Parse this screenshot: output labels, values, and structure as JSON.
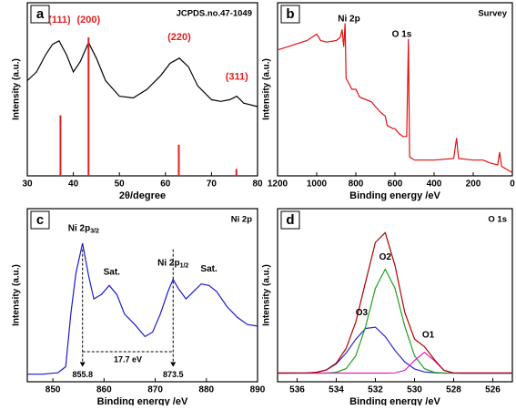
{
  "chart_data": [
    {
      "type": "line",
      "panel": "a",
      "title": "JCPDS.no.47-1049",
      "xlabel": "2θ/degree",
      "ylabel": "Intensity (a.u.)",
      "xlim": [
        30,
        80
      ],
      "xticks": [
        30,
        40,
        50,
        60,
        70,
        80
      ],
      "ylim": [
        0,
        1
      ],
      "series": [
        {
          "type": "line",
          "color": "#000000",
          "x": [
            30,
            32,
            34,
            35.5,
            36.9,
            38.5,
            40,
            41.5,
            43.3,
            45,
            47,
            50,
            53,
            56,
            59,
            61,
            63,
            65,
            67,
            70,
            72,
            74,
            75.5,
            77,
            80
          ],
          "values": [
            0.55,
            0.6,
            0.7,
            0.76,
            0.78,
            0.7,
            0.6,
            0.66,
            0.77,
            0.68,
            0.55,
            0.46,
            0.45,
            0.5,
            0.58,
            0.65,
            0.68,
            0.63,
            0.52,
            0.44,
            0.43,
            0.44,
            0.46,
            0.42,
            0.4
          ]
        },
        {
          "type": "bar",
          "color": "#e02020",
          "x": [
            37.2,
            43.3,
            62.9,
            75.4
          ],
          "values": [
            0.35,
            0.8,
            0.18,
            0.04
          ]
        }
      ],
      "annotations": [
        {
          "text": "(111)",
          "x": 37,
          "y": 0.9,
          "color": "#e02020"
        },
        {
          "text": "(200)",
          "x": 43.3,
          "y": 0.9,
          "color": "#e02020"
        },
        {
          "text": "(220)",
          "x": 63,
          "y": 0.8,
          "color": "#e02020"
        },
        {
          "text": "(311)",
          "x": 75.5,
          "y": 0.57,
          "color": "#e02020"
        }
      ]
    },
    {
      "type": "line",
      "panel": "b",
      "title": "Survey",
      "xlabel": "Binding energy /eV",
      "ylabel": "Intensity (a.u.)",
      "xlim": [
        1200,
        0
      ],
      "xticks": [
        1200,
        1000,
        800,
        600,
        400,
        200,
        0
      ],
      "ylim": [
        0,
        1.1
      ],
      "series": [
        {
          "type": "line",
          "color": "#e01010",
          "x": [
            1200,
            1150,
            1100,
            1050,
            1000,
            980,
            950,
            900,
            880,
            870,
            862,
            855,
            850,
            820,
            800,
            780,
            720,
            700,
            670,
            650,
            640,
            610,
            600,
            580,
            560,
            540,
            531,
            525,
            500,
            400,
            300,
            285,
            275,
            200,
            150,
            110,
            75,
            65,
            55,
            0
          ],
          "values": [
            0.8,
            0.82,
            0.84,
            0.86,
            0.9,
            0.86,
            0.85,
            0.86,
            0.88,
            0.93,
            0.82,
            0.97,
            0.62,
            0.55,
            0.55,
            0.5,
            0.47,
            0.44,
            0.4,
            0.38,
            0.32,
            0.3,
            0.3,
            0.27,
            0.25,
            0.25,
            0.87,
            0.12,
            0.1,
            0.1,
            0.11,
            0.24,
            0.11,
            0.1,
            0.1,
            0.08,
            0.07,
            0.15,
            0.06,
            0.02
          ]
        }
      ],
      "annotations": [
        {
          "text": "Ni 2p",
          "x": 835,
          "y": 1.0,
          "color": "#000000"
        },
        {
          "text": "O 1s",
          "x": 565,
          "y": 0.9,
          "color": "#000000"
        }
      ]
    },
    {
      "type": "line",
      "panel": "c",
      "title": "Ni 2p",
      "xlabel": "Binding energy /eV",
      "ylabel": "Intensity (a.u.)",
      "xlim": [
        845,
        890
      ],
      "xticks": [
        850,
        860,
        870,
        880,
        890
      ],
      "ylim": [
        0,
        1.15
      ],
      "series": [
        {
          "type": "line",
          "color": "#1a1ad0",
          "x": [
            845,
            848,
            851,
            852.5,
            853.5,
            854.5,
            855.8,
            857,
            858,
            859.5,
            861,
            862.5,
            864,
            866,
            868,
            869.5,
            871,
            872.5,
            873.5,
            874.5,
            876,
            877.5,
            879,
            880.5,
            882,
            884,
            886,
            888,
            890
          ],
          "values": [
            0.05,
            0.05,
            0.06,
            0.1,
            0.45,
            0.72,
            0.92,
            0.7,
            0.55,
            0.58,
            0.64,
            0.58,
            0.45,
            0.38,
            0.3,
            0.33,
            0.45,
            0.6,
            0.68,
            0.62,
            0.55,
            0.6,
            0.65,
            0.64,
            0.6,
            0.5,
            0.43,
            0.38,
            0.37
          ]
        }
      ],
      "annotations": [
        {
          "text": "Ni 2p",
          "sub": "3/2",
          "x": 856,
          "y": 1.02,
          "color": "#000000"
        },
        {
          "text": "Sat.",
          "x": 861.5,
          "y": 0.73,
          "color": "#000000"
        },
        {
          "text": "Ni 2p",
          "sub": "1/2",
          "x": 873.5,
          "y": 0.79,
          "color": "#000000"
        },
        {
          "text": "Sat.",
          "x": 880.5,
          "y": 0.75,
          "color": "#000000"
        }
      ],
      "markers": [
        855.8,
        873.5
      ],
      "marker_gap_label": "17.7 eV"
    },
    {
      "type": "line",
      "panel": "d",
      "title": "O 1s",
      "xlabel": "Binding energy /eV",
      "ylabel": "Intensity (a.u.)",
      "xlim": [
        537,
        525
      ],
      "xticks": [
        536,
        534,
        532,
        530,
        528,
        526
      ],
      "ylim": [
        0,
        1
      ],
      "series": [
        {
          "type": "line",
          "color": "#2a2ad0",
          "x": [
            537,
            535.5,
            535,
            534.5,
            534,
            533.5,
            533,
            532.5,
            532,
            531.5,
            531,
            530.5,
            530,
            529.5,
            529,
            528.5,
            528,
            527.5,
            525
          ],
          "values": [
            0.05,
            0.051,
            0.055,
            0.069,
            0.103,
            0.166,
            0.246,
            0.308,
            0.315,
            0.261,
            0.181,
            0.114,
            0.074,
            0.057,
            0.052,
            0.05,
            0.05,
            0.05,
            0.05
          ]
        },
        {
          "type": "line",
          "color": "#20a020",
          "x": [
            537,
            535.5,
            535,
            534.5,
            534,
            533.5,
            533,
            532.5,
            532,
            531.5,
            531,
            530.5,
            530,
            529.5,
            529,
            528.5,
            528,
            527.5,
            525
          ],
          "values": [
            0.05,
            0.05,
            0.05,
            0.05,
            0.055,
            0.076,
            0.15,
            0.32,
            0.54,
            0.65,
            0.54,
            0.32,
            0.15,
            0.076,
            0.055,
            0.05,
            0.05,
            0.05,
            0.05
          ]
        },
        {
          "type": "line",
          "color": "#e020c0",
          "x": [
            537,
            535.5,
            535,
            534.5,
            534,
            533.5,
            533,
            532.5,
            532,
            531.5,
            531,
            530.5,
            530,
            529.5,
            529,
            528.5,
            528,
            527.5,
            525
          ],
          "values": [
            0.05,
            0.05,
            0.05,
            0.05,
            0.05,
            0.05,
            0.05,
            0.05,
            0.05,
            0.05,
            0.051,
            0.066,
            0.123,
            0.17,
            0.123,
            0.066,
            0.051,
            0.05,
            0.05
          ]
        },
        {
          "type": "line",
          "color": "#b00000",
          "x": [
            537,
            535.5,
            535,
            534.5,
            534,
            533.5,
            533,
            532.5,
            532,
            531.5,
            531,
            530.5,
            530,
            529.5,
            529,
            528.5,
            528,
            527.5,
            525
          ],
          "values": [
            0.05,
            0.051,
            0.055,
            0.069,
            0.108,
            0.192,
            0.346,
            0.578,
            0.805,
            0.861,
            0.672,
            0.4,
            0.247,
            0.203,
            0.13,
            0.066,
            0.051,
            0.05,
            0.05
          ]
        }
      ],
      "annotations": [
        {
          "text": "O2",
          "x": 531.5,
          "y": 0.72,
          "color": "#000000"
        },
        {
          "text": "O3",
          "x": 532.7,
          "y": 0.4,
          "color": "#000000"
        },
        {
          "text": "O1",
          "x": 529.3,
          "y": 0.27,
          "color": "#000000"
        }
      ]
    }
  ]
}
